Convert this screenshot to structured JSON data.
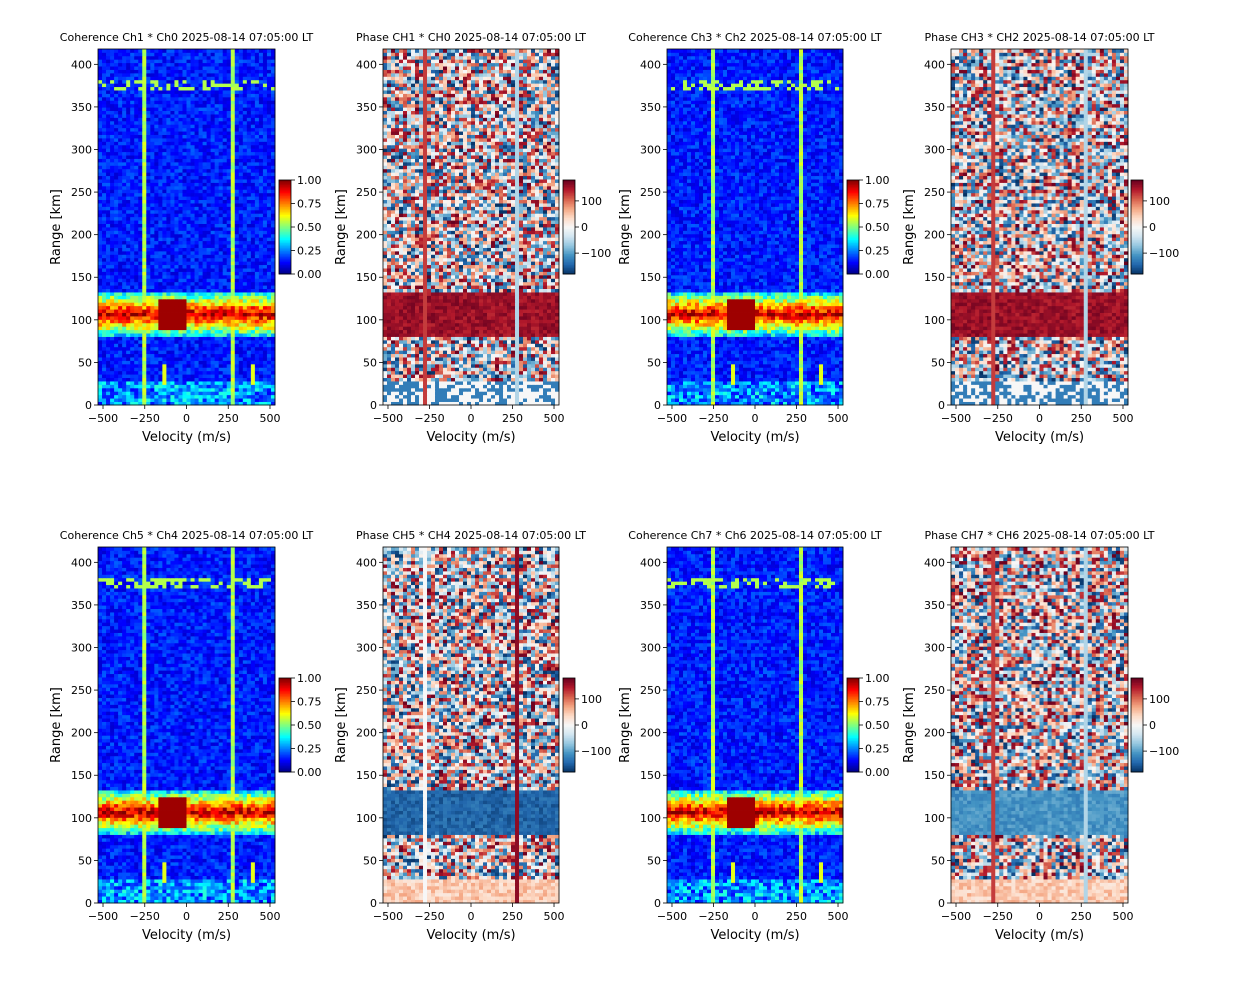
{
  "figure": {
    "background": "#ffffff"
  },
  "chart_data": [
    {
      "type": "heatmap",
      "kind": "coherence",
      "title": "Coherence Ch1 * Ch0 2025-08-14 07:05:00 LT",
      "xlabel": "Velocity (m/s)",
      "ylabel": "Range [km]",
      "xlim": [
        -530,
        530
      ],
      "ylim": [
        0,
        418
      ],
      "xticks": [
        "−500",
        "−250",
        "0",
        "250",
        "500"
      ],
      "yticks": [
        "0",
        "50",
        "100",
        "150",
        "200",
        "250",
        "300",
        "350",
        "400"
      ],
      "colorbar": {
        "cmap": "jet",
        "range": [
          0,
          1
        ],
        "ticks": [
          "0.00",
          "0.25",
          "0.50",
          "0.75",
          "1.00"
        ]
      }
    },
    {
      "type": "heatmap",
      "kind": "phase",
      "phase_variant": "red",
      "title": "Phase CH1 * CH0 2025-08-14 07:05:00 LT",
      "xlabel": "Velocity (m/s)",
      "ylabel": "Range [km]",
      "xlim": [
        -530,
        530
      ],
      "ylim": [
        0,
        418
      ],
      "xticks": [
        "−500",
        "−250",
        "0",
        "250",
        "500"
      ],
      "yticks": [
        "0",
        "50",
        "100",
        "150",
        "200",
        "250",
        "300",
        "350",
        "400"
      ],
      "colorbar": {
        "cmap": "RdBu_r",
        "range": [
          -180,
          180
        ],
        "ticks": [
          "100",
          "0",
          "−100"
        ]
      }
    },
    {
      "type": "heatmap",
      "kind": "coherence",
      "title": "Coherence Ch3 * Ch2 2025-08-14 07:05:00 LT",
      "xlabel": "Velocity (m/s)",
      "ylabel": "Range [km]",
      "xlim": [
        -530,
        530
      ],
      "ylim": [
        0,
        418
      ],
      "xticks": [
        "−500",
        "−250",
        "0",
        "250",
        "500"
      ],
      "yticks": [
        "0",
        "50",
        "100",
        "150",
        "200",
        "250",
        "300",
        "350",
        "400"
      ],
      "colorbar": {
        "cmap": "jet",
        "range": [
          0,
          1
        ],
        "ticks": [
          "0.00",
          "0.25",
          "0.50",
          "0.75",
          "1.00"
        ]
      }
    },
    {
      "type": "heatmap",
      "kind": "phase",
      "phase_variant": "red",
      "title": "Phase CH3 * CH2 2025-08-14 07:05:00 LT",
      "xlabel": "Velocity (m/s)",
      "ylabel": "Range [km]",
      "xlim": [
        -530,
        530
      ],
      "ylim": [
        0,
        418
      ],
      "xticks": [
        "−500",
        "−250",
        "0",
        "250",
        "500"
      ],
      "yticks": [
        "0",
        "50",
        "100",
        "150",
        "200",
        "250",
        "300",
        "350",
        "400"
      ],
      "colorbar": {
        "cmap": "RdBu_r",
        "range": [
          -180,
          180
        ],
        "ticks": [
          "100",
          "0",
          "−100"
        ]
      }
    },
    {
      "type": "heatmap",
      "kind": "coherence",
      "title": "Coherence Ch5 * Ch4 2025-08-14 07:05:00 LT",
      "xlabel": "Velocity (m/s)",
      "ylabel": "Range [km]",
      "xlim": [
        -530,
        530
      ],
      "ylim": [
        0,
        418
      ],
      "xticks": [
        "−500",
        "−250",
        "0",
        "250",
        "500"
      ],
      "yticks": [
        "0",
        "50",
        "100",
        "150",
        "200",
        "250",
        "300",
        "350",
        "400"
      ],
      "colorbar": {
        "cmap": "jet",
        "range": [
          0,
          1
        ],
        "ticks": [
          "0.00",
          "0.25",
          "0.50",
          "0.75",
          "1.00"
        ]
      }
    },
    {
      "type": "heatmap",
      "kind": "phase",
      "phase_variant": "darkblue",
      "title": "Phase CH5 * CH4 2025-08-14 07:05:00 LT",
      "xlabel": "Velocity (m/s)",
      "ylabel": "Range [km]",
      "xlim": [
        -530,
        530
      ],
      "ylim": [
        0,
        418
      ],
      "xticks": [
        "−500",
        "−250",
        "0",
        "250",
        "500"
      ],
      "yticks": [
        "0",
        "50",
        "100",
        "150",
        "200",
        "250",
        "300",
        "350",
        "400"
      ],
      "colorbar": {
        "cmap": "RdBu_r",
        "range": [
          -180,
          180
        ],
        "ticks": [
          "100",
          "0",
          "−100"
        ]
      }
    },
    {
      "type": "heatmap",
      "kind": "coherence",
      "title": "Coherence Ch7 * Ch6 2025-08-14 07:05:00 LT",
      "xlabel": "Velocity (m/s)",
      "ylabel": "Range [km]",
      "xlim": [
        -530,
        530
      ],
      "ylim": [
        0,
        418
      ],
      "xticks": [
        "−500",
        "−250",
        "0",
        "250",
        "500"
      ],
      "yticks": [
        "0",
        "50",
        "100",
        "150",
        "200",
        "250",
        "300",
        "350",
        "400"
      ],
      "colorbar": {
        "cmap": "jet",
        "range": [
          0,
          1
        ],
        "ticks": [
          "0.00",
          "0.25",
          "0.50",
          "0.75",
          "1.00"
        ]
      }
    },
    {
      "type": "heatmap",
      "kind": "phase",
      "phase_variant": "lightblue",
      "title": "Phase CH7 * CH6 2025-08-14 07:05:00 LT",
      "xlabel": "Velocity (m/s)",
      "ylabel": "Range [km]",
      "xlim": [
        -530,
        530
      ],
      "ylim": [
        0,
        418
      ],
      "xticks": [
        "−500",
        "−250",
        "0",
        "250",
        "500"
      ],
      "yticks": [
        "0",
        "50",
        "100",
        "150",
        "200",
        "250",
        "300",
        "350",
        "400"
      ],
      "colorbar": {
        "cmap": "RdBu_r",
        "range": [
          -180,
          180
        ],
        "ticks": [
          "100",
          "0",
          "−100"
        ]
      }
    }
  ]
}
